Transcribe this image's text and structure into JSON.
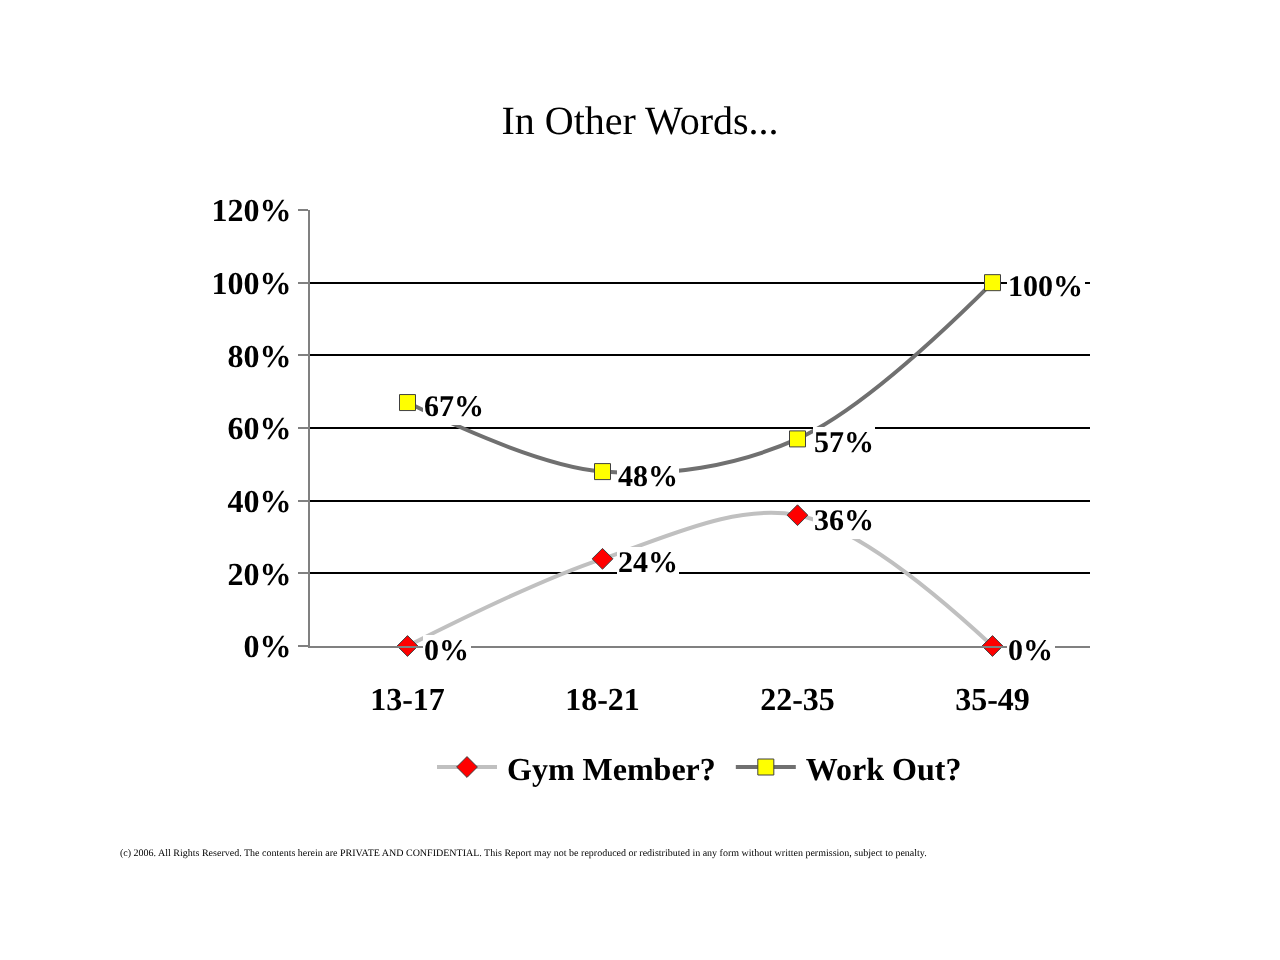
{
  "chart_data": {
    "type": "line",
    "title": "In Other Words...",
    "categories": [
      "13-17",
      "18-21",
      "22-35",
      "35-49"
    ],
    "series": [
      {
        "name": "Gym Member?",
        "color": "#ff0000",
        "marker": "diamond",
        "values": [
          0,
          24,
          36,
          0
        ],
        "value_labels": [
          "0%",
          "24%",
          "36%",
          "0%"
        ]
      },
      {
        "name": "Work Out?",
        "color": "#ffff00",
        "marker": "square",
        "values": [
          67,
          48,
          57,
          100
        ],
        "value_labels": [
          "67%",
          "48%",
          "57%",
          "100%"
        ]
      }
    ],
    "ylim": [
      0,
      120
    ],
    "yticks": [
      {
        "value": 0,
        "label": "0%"
      },
      {
        "value": 20,
        "label": "20%"
      },
      {
        "value": 40,
        "label": "40%"
      },
      {
        "value": 60,
        "label": "60%"
      },
      {
        "value": 80,
        "label": "80%"
      },
      {
        "value": 100,
        "label": "100%"
      },
      {
        "value": 120,
        "label": "120%"
      }
    ],
    "grid": "y",
    "legend": "bottom",
    "annotations": [
      "(c) 2006. All Rights Reserved. The contents herein are PRIVATE AND CONFIDENTIAL. This Report may not be reproduced or redistributed in any form without written permission, subject to penalty."
    ]
  }
}
